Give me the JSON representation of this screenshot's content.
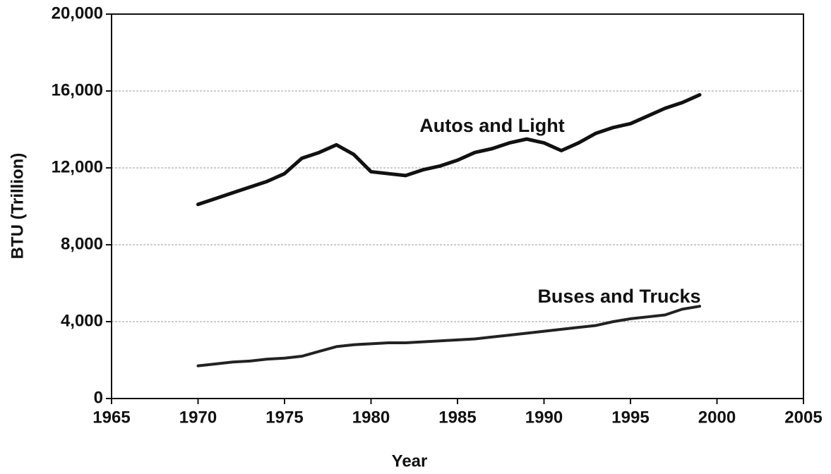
{
  "chart_data": {
    "type": "line",
    "x_label": "Year",
    "y_label": "BTU (Trillion)",
    "x": [
      1970,
      1971,
      1972,
      1973,
      1974,
      1975,
      1976,
      1977,
      1978,
      1979,
      1980,
      1981,
      1982,
      1983,
      1984,
      1985,
      1986,
      1987,
      1988,
      1989,
      1990,
      1991,
      1992,
      1993,
      1994,
      1995,
      1996,
      1997,
      1998,
      1999
    ],
    "series": [
      {
        "name": "Autos and Light",
        "color": "#111111",
        "values": [
          10100,
          10400,
          10700,
          11000,
          11300,
          11700,
          12500,
          12800,
          13200,
          12700,
          11800,
          11700,
          11600,
          11900,
          12100,
          12400,
          12800,
          13000,
          13300,
          13500,
          13300,
          12900,
          13300,
          13800,
          14100,
          14300,
          14700,
          15100,
          15400,
          15800
        ]
      },
      {
        "name": "Buses and Trucks",
        "color": "#222222",
        "values": [
          1700,
          1800,
          1900,
          1950,
          2050,
          2100,
          2200,
          2450,
          2700,
          2800,
          2850,
          2900,
          2900,
          2950,
          3000,
          3050,
          3100,
          3200,
          3300,
          3400,
          3500,
          3600,
          3700,
          3800,
          4000,
          4150,
          4250,
          4350,
          4650,
          4800
        ]
      }
    ],
    "xlim": [
      1965,
      2005
    ],
    "xticks": [
      1965,
      1970,
      1975,
      1980,
      1985,
      1990,
      1995,
      2000,
      2005
    ],
    "ylim": [
      0,
      20000
    ],
    "yticks": [
      0,
      {
        "value": 4000,
        "label": "4,000"
      },
      {
        "value": 8000,
        "label": "8,000"
      },
      {
        "value": 12000,
        "label": "12,000"
      },
      {
        "value": 16000,
        "label": "16,000"
      },
      {
        "value": 20000,
        "label": "20,000"
      }
    ],
    "grid": true
  }
}
